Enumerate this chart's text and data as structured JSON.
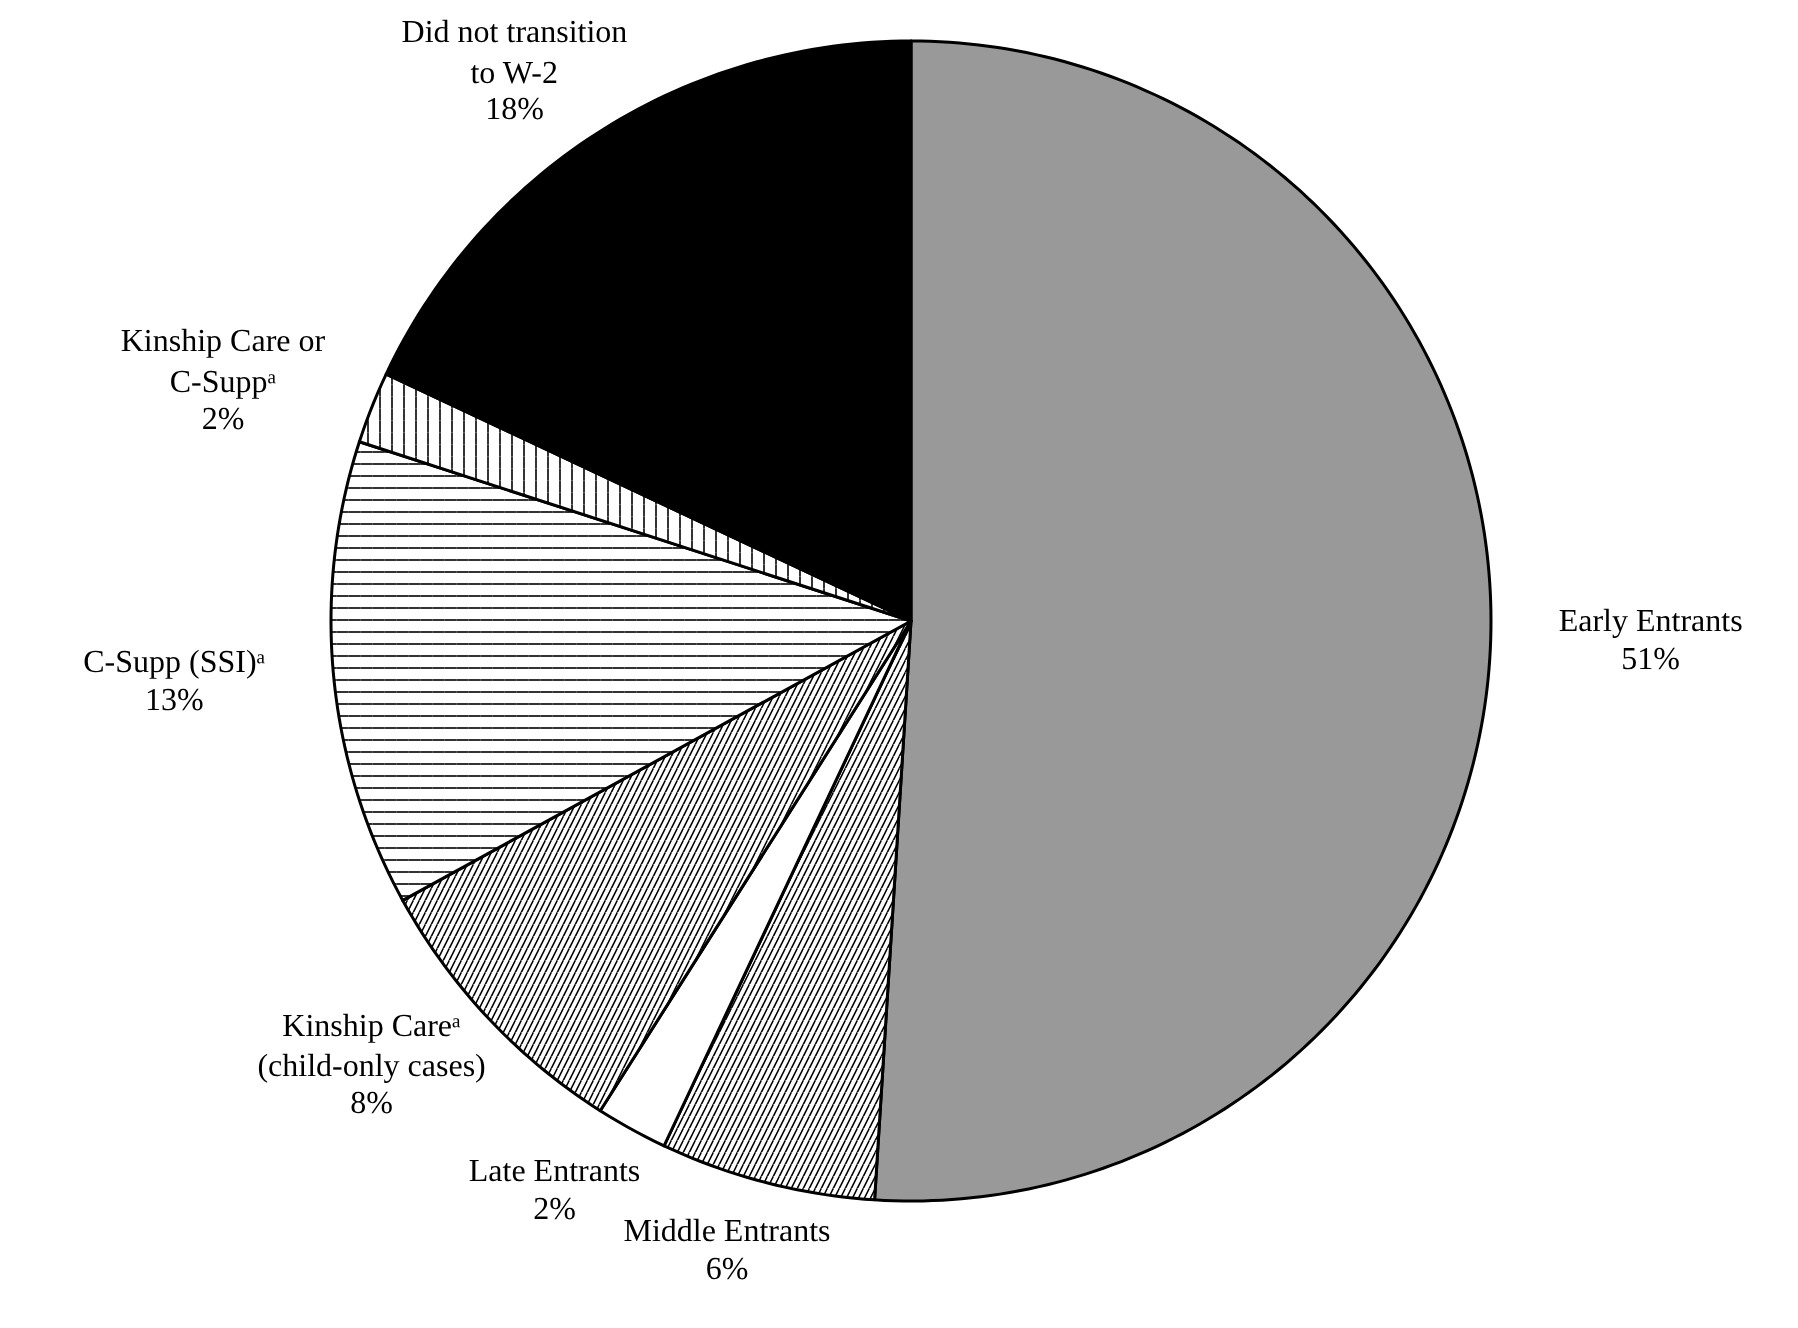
{
  "chart_data": {
    "type": "pie",
    "categories": [
      "Early Entrants",
      "Middle Entrants",
      "Late Entrants",
      "Kinship Careᵃ\n(child-only cases)",
      "C-Supp (SSI)ᵃ",
      "Kinship Care or\nC-Suppᵃ",
      "Did not transition\nto W-2"
    ],
    "values": [
      51,
      6,
      2,
      8,
      13,
      2,
      18
    ],
    "value_labels": [
      "51%",
      "6%",
      "2%",
      "8%",
      "13%",
      "2%",
      "18%"
    ],
    "colors": [
      "#999999",
      "#ffffff",
      "#ffffff",
      "#ffffff",
      "#ffffff",
      "#ffffff",
      "#000000"
    ]
  }
}
